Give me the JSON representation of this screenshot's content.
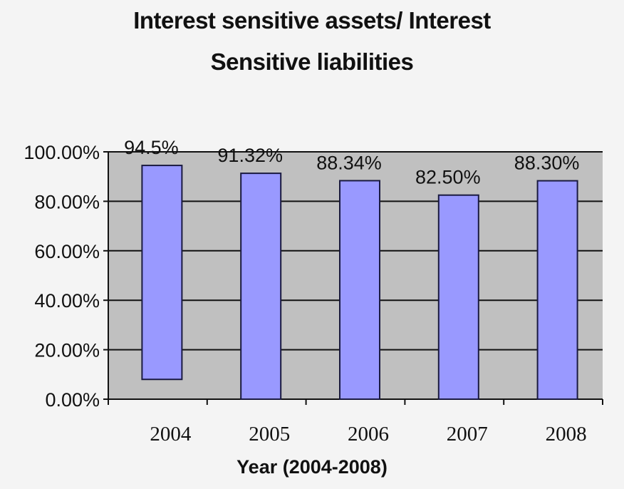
{
  "chart_data": {
    "type": "bar",
    "title_line1": "Interest sensitive assets/ Interest",
    "title_line2": "Sensitive liabilities",
    "xlabel": "Year (2004-2008)",
    "ylabel": "",
    "categories": [
      "2004",
      "2005",
      "2006",
      "2007",
      "2008"
    ],
    "values": [
      94.5,
      91.32,
      88.34,
      82.5,
      88.3
    ],
    "bar_bottoms": [
      8,
      0,
      0,
      0,
      0
    ],
    "data_labels": [
      "94.5%",
      "91.32%",
      "88.34%",
      "82.50%",
      "88.30%"
    ],
    "y_ticks": [
      0,
      20,
      40,
      60,
      80,
      100
    ],
    "y_tick_labels": [
      "0.00%",
      "20.00%",
      "40.00%",
      "60.00%",
      "80.00%",
      "100.00%"
    ],
    "ylim": [
      0,
      100
    ],
    "grid": true,
    "legend": "none",
    "colors": {
      "bar_fill": "#9999ff",
      "bar_stroke": "#1a1a40",
      "plot_bg": "#c0c0c0",
      "grid": "#111111"
    }
  }
}
